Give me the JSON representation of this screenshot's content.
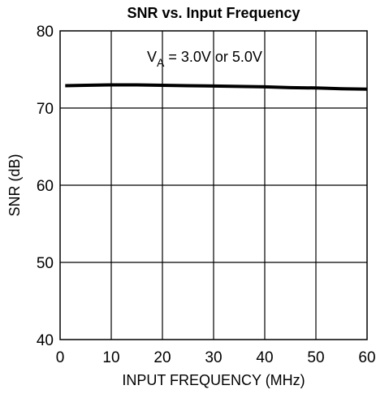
{
  "chart_data": {
    "type": "line",
    "title": "SNR vs. Input Frequency",
    "xlabel": "INPUT FREQUENCY (MHz)",
    "ylabel": "SNR (dB)",
    "xlim": [
      0,
      60
    ],
    "ylim": [
      40,
      80
    ],
    "xticks": [
      0,
      10,
      20,
      30,
      40,
      50,
      60
    ],
    "yticks": [
      40,
      50,
      60,
      70,
      80
    ],
    "grid": true,
    "annotation": {
      "prefix": "V",
      "subscript": "A",
      "suffix": " = 3.0V or 5.0V"
    },
    "series": [
      {
        "x": [
          1,
          5,
          10,
          15,
          20,
          25,
          30,
          35,
          40,
          45,
          50,
          55,
          60
        ],
        "y": [
          72.9,
          72.95,
          73.0,
          73.0,
          72.95,
          72.9,
          72.85,
          72.8,
          72.75,
          72.65,
          72.6,
          72.5,
          72.45
        ],
        "color": "#000000"
      }
    ]
  }
}
